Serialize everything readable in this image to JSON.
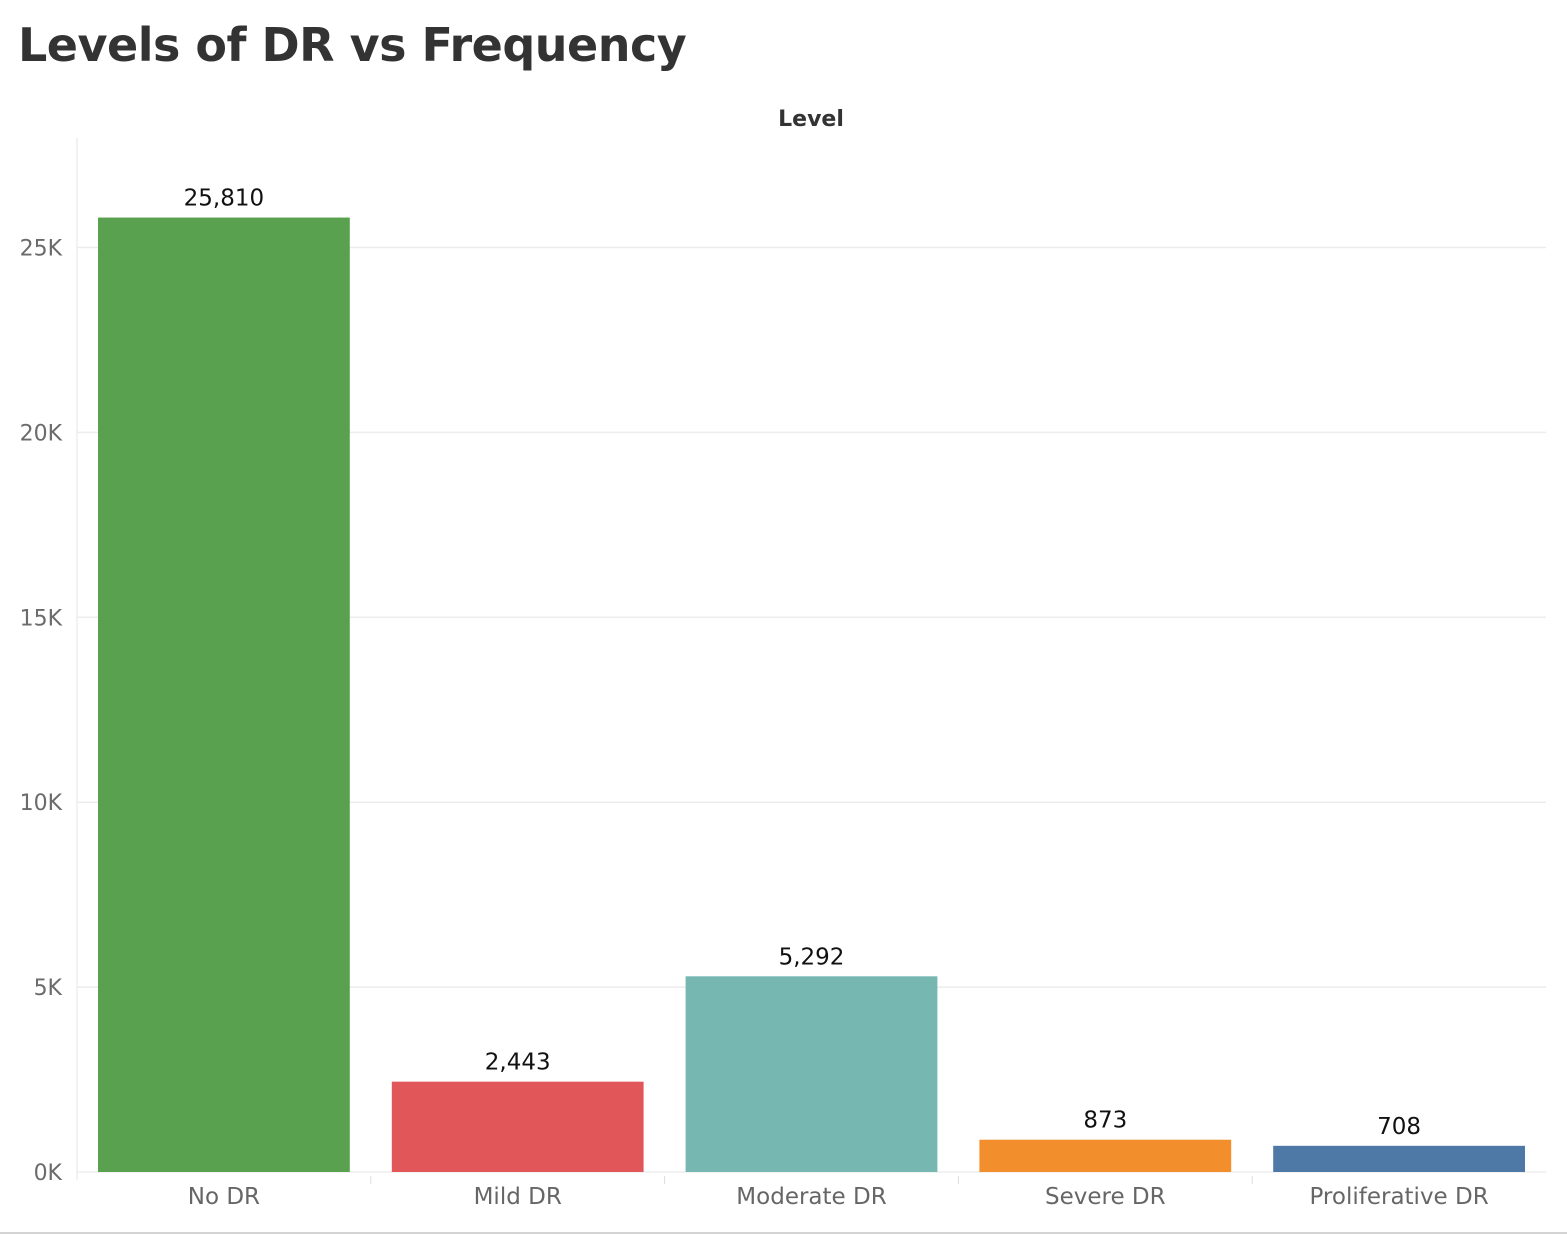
{
  "title": "Levels of DR vs Frequency",
  "chart_data": {
    "type": "bar",
    "column_header": "Level",
    "categories": [
      "No DR",
      "Mild DR",
      "Moderate DR",
      "Severe DR",
      "Proliferative DR"
    ],
    "values": [
      25810,
      2443,
      5292,
      873,
      708
    ],
    "value_labels": [
      "25,810",
      "2,443",
      "5,292",
      "873",
      "708"
    ],
    "colors": [
      "#59a14f",
      "#e15759",
      "#76b7b2",
      "#f28e2b",
      "#4e79a7"
    ],
    "yticks": [
      0,
      5000,
      10000,
      15000,
      20000,
      25000
    ],
    "ytick_labels": [
      "0K",
      "5K",
      "10K",
      "15K",
      "20K",
      "25K"
    ],
    "ylim": [
      0,
      27600
    ],
    "grid": true,
    "legend": "none"
  }
}
